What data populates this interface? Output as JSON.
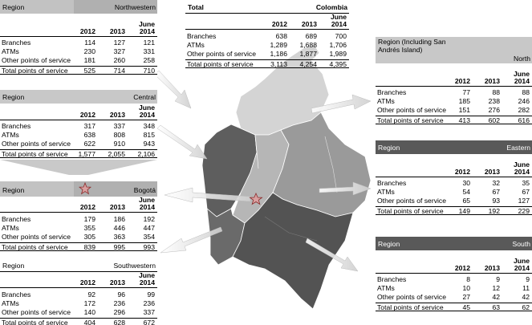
{
  "common": {
    "region_label": "Region",
    "years": [
      "2012",
      "2013",
      "June 2014"
    ],
    "row_labels": [
      "Branches",
      "ATMs",
      "Other points of service",
      "Total points of service"
    ]
  },
  "total": {
    "title": "Total",
    "name": "Colombia",
    "rows": [
      [
        "638",
        "689",
        "700"
      ],
      [
        "1,289",
        "1,688",
        "1,706"
      ],
      [
        "1,186",
        "1,877",
        "1,989"
      ],
      [
        "3,113",
        "4,254",
        "4,395"
      ]
    ]
  },
  "regions": {
    "northwestern": {
      "name": "Northwestern",
      "rows": [
        [
          "114",
          "127",
          "121"
        ],
        [
          "230",
          "327",
          "331"
        ],
        [
          "181",
          "260",
          "258"
        ],
        [
          "525",
          "714",
          "710"
        ]
      ]
    },
    "central": {
      "name": "Central",
      "rows": [
        [
          "317",
          "337",
          "348"
        ],
        [
          "638",
          "808",
          "815"
        ],
        [
          "622",
          "910",
          "943"
        ],
        [
          "1,577",
          "2,055",
          "2,106"
        ]
      ]
    },
    "bogota": {
      "name": "Bogotá",
      "rows": [
        [
          "179",
          "186",
          "192"
        ],
        [
          "355",
          "446",
          "447"
        ],
        [
          "305",
          "363",
          "354"
        ],
        [
          "839",
          "995",
          "993"
        ]
      ]
    },
    "southwestern": {
      "name": "Southwestern",
      "rows": [
        [
          "92",
          "96",
          "99"
        ],
        [
          "172",
          "236",
          "236"
        ],
        [
          "140",
          "296",
          "337"
        ],
        [
          "404",
          "628",
          "672"
        ]
      ]
    },
    "north": {
      "region_label": "Region (Including San Andrés Island)",
      "name": "North",
      "rows": [
        [
          "77",
          "88",
          "88"
        ],
        [
          "185",
          "238",
          "246"
        ],
        [
          "151",
          "276",
          "282"
        ],
        [
          "413",
          "602",
          "616"
        ]
      ]
    },
    "eastern": {
      "name": "Eastern",
      "rows": [
        [
          "30",
          "32",
          "35"
        ],
        [
          "54",
          "67",
          "67"
        ],
        [
          "65",
          "93",
          "127"
        ],
        [
          "149",
          "192",
          "229"
        ]
      ]
    },
    "south": {
      "name": "South",
      "rows": [
        [
          "8",
          "9",
          "9"
        ],
        [
          "10",
          "12",
          "11"
        ],
        [
          "27",
          "42",
          "42"
        ],
        [
          "45",
          "63",
          "62"
        ]
      ]
    }
  },
  "colors": {
    "dark": "#595959",
    "mid": "#8d8d8d",
    "light": "#c8c8c8",
    "map_dark": "#5e5e5e",
    "map_mid": "#9a9a9a",
    "map_light": "#d4d4d4",
    "star": "#d9a0a0"
  },
  "icons": {
    "bogota_marker": "star-icon"
  }
}
